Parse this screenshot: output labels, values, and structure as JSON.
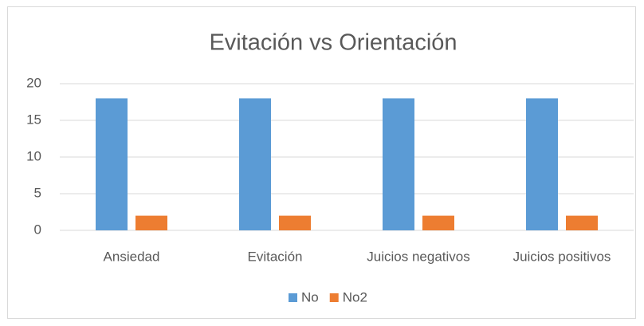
{
  "chart_data": {
    "type": "bar",
    "title": "Evitación vs Orientación",
    "categories": [
      "Ansiedad",
      "Evitación",
      "Juicios negativos",
      "Juicios positivos"
    ],
    "series": [
      {
        "name": "No",
        "color": "#5b9bd5",
        "values": [
          18,
          18,
          18,
          18
        ]
      },
      {
        "name": "No2",
        "color": "#ed7d31",
        "values": [
          2,
          2,
          2,
          2
        ]
      }
    ],
    "ylim": [
      0,
      20
    ],
    "yticks": [
      0,
      5,
      10,
      15,
      20
    ],
    "grid": true,
    "legend": "bottom"
  }
}
